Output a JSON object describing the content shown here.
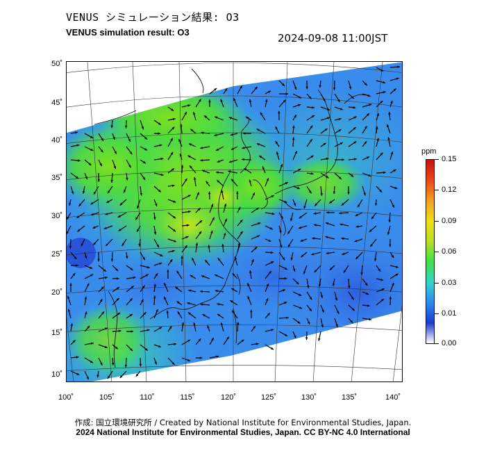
{
  "header": {
    "title_jp": "VENUS シミュレーション結果: O3",
    "title_en": "VENUS simulation result: O3",
    "datetime": "2024-09-08 11:00JST"
  },
  "map": {
    "lat_labels": [
      "50˚",
      "45˚",
      "40˚",
      "35˚",
      "30˚",
      "25˚",
      "20˚",
      "15˚",
      "10˚"
    ],
    "lon_labels": [
      "100˚",
      "105˚",
      "110˚",
      "115˚",
      "120˚",
      "125˚",
      "130˚",
      "135˚",
      "140˚"
    ],
    "field": "O3 concentration with wind vectors"
  },
  "colorbar": {
    "unit": "ppm",
    "tick_labels": [
      "0.15",
      "0.12",
      "0.09",
      "0.06",
      "0.03",
      "0.01",
      "0.00"
    ],
    "colors": [
      "#ffffff",
      "#1a3ccc",
      "#2b8cf0",
      "#33d4c8",
      "#3fe04a",
      "#b8e020",
      "#f0e010",
      "#f0a020",
      "#e84818",
      "#c81010"
    ]
  },
  "footer": {
    "credit_jp": "作成: 国立環境研究所 / Created by National Institute for Environmental Studies, Japan.",
    "credit_en": "2024 National Institute for Environmental Studies, Japan. CC BY-NC 4.0 International"
  }
}
